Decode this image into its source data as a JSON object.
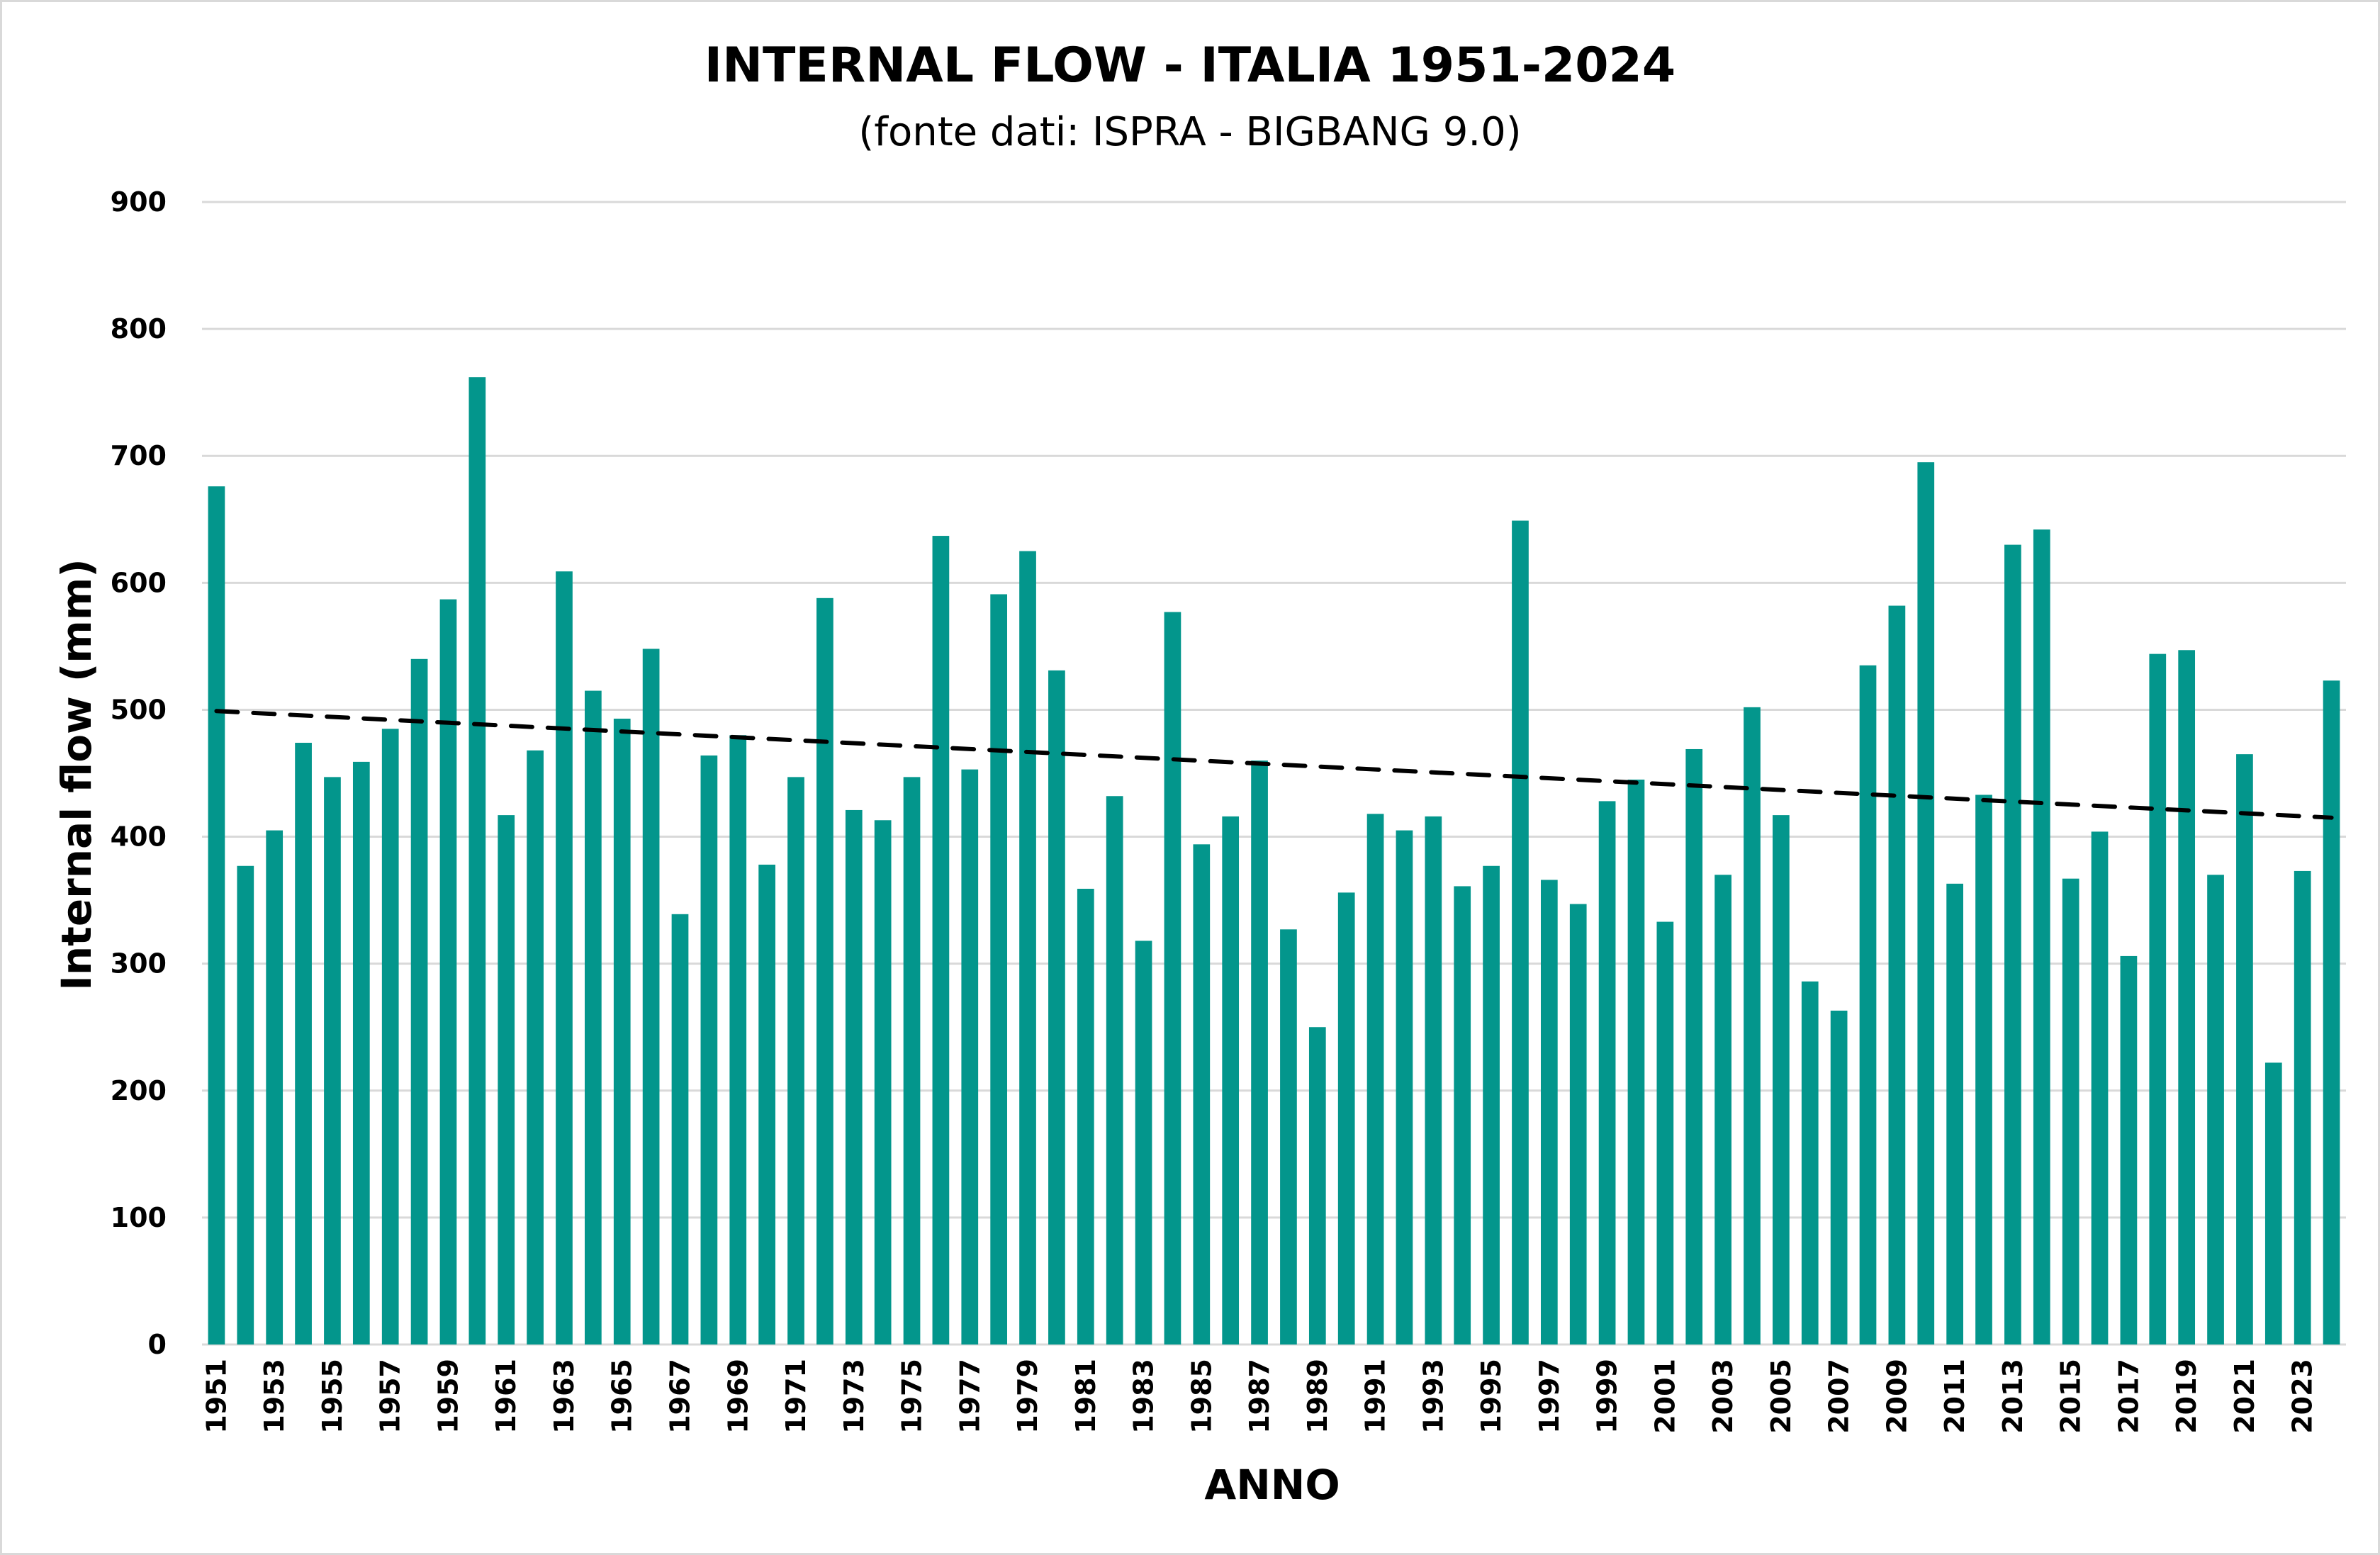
{
  "chart_data": {
    "type": "bar",
    "title": "INTERNAL FLOW - ITALIA 1951-2024",
    "subtitle": "(fonte dati: ISPRA - BIGBANG 9.0)",
    "xlabel": "ANNO",
    "ylabel": "Internal flow (mm)",
    "ylim": [
      0,
      900
    ],
    "yticks": [
      0,
      100,
      200,
      300,
      400,
      500,
      600,
      700,
      800,
      900
    ],
    "grid": true,
    "legend": "none",
    "colors": {
      "bar": "#03968C",
      "trend": "#000000",
      "grid": "#d9d9d9"
    },
    "categories": [
      1951,
      1952,
      1953,
      1954,
      1955,
      1956,
      1957,
      1958,
      1959,
      1960,
      1961,
      1962,
      1963,
      1964,
      1965,
      1966,
      1967,
      1968,
      1969,
      1970,
      1971,
      1972,
      1973,
      1974,
      1975,
      1976,
      1977,
      1978,
      1979,
      1980,
      1981,
      1982,
      1983,
      1984,
      1985,
      1986,
      1987,
      1988,
      1989,
      1990,
      1991,
      1992,
      1993,
      1994,
      1995,
      1996,
      1997,
      1998,
      1999,
      2000,
      2001,
      2002,
      2003,
      2004,
      2005,
      2006,
      2007,
      2008,
      2009,
      2010,
      2011,
      2012,
      2013,
      2014,
      2015,
      2016,
      2017,
      2018,
      2019,
      2020,
      2021,
      2022,
      2023,
      2024
    ],
    "xtick_labels_shown": [
      "1951",
      "1953",
      "1955",
      "1957",
      "1959",
      "1961",
      "1963",
      "1965",
      "1967",
      "1969",
      "1971",
      "1973",
      "1975",
      "1977",
      "1979",
      "1981",
      "1983",
      "1985",
      "1987",
      "1989",
      "1991",
      "1993",
      "1995",
      "1997",
      "1999",
      "2001",
      "2003",
      "2005",
      "2007",
      "2009",
      "2011",
      "2013",
      "2015",
      "2017",
      "2019",
      "2021",
      "2023"
    ],
    "values": [
      676,
      377,
      405,
      474,
      447,
      459,
      485,
      540,
      587,
      762,
      417,
      468,
      609,
      515,
      493,
      548,
      339,
      464,
      480,
      378,
      447,
      588,
      421,
      413,
      447,
      637,
      453,
      591,
      625,
      531,
      359,
      432,
      318,
      577,
      394,
      416,
      460,
      327,
      250,
      356,
      418,
      405,
      416,
      361,
      377,
      649,
      366,
      347,
      428,
      445,
      333,
      469,
      370,
      502,
      417,
      286,
      263,
      535,
      582,
      695,
      363,
      433,
      630,
      642,
      367,
      404,
      306,
      544,
      547,
      370,
      465,
      222,
      373,
      523
    ],
    "trendline": {
      "type": "linear",
      "style": "dashed",
      "start": {
        "x": 1951,
        "y": 499
      },
      "end": {
        "x": 2024,
        "y": 415
      }
    }
  }
}
